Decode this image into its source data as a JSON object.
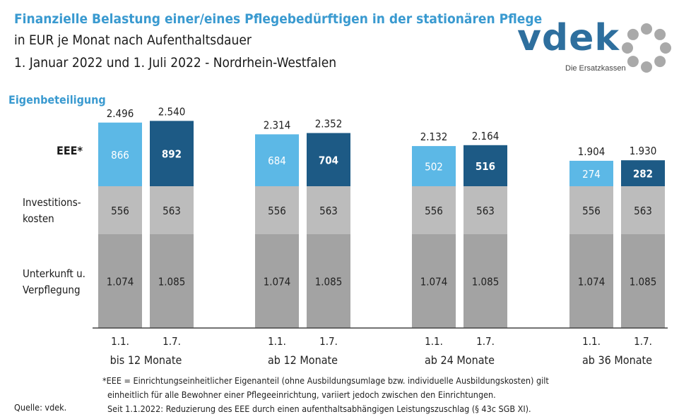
{
  "header": {
    "title": "Finanzielle Belastung einer/eines Pflegebedürftigen in der stationären Pflege",
    "subtitle": "in EUR je Monat nach Aufenthaltsdauer",
    "subtitle2": "1. Januar 2022 und 1. Juli 2022 - Nordrhein-Westfalen"
  },
  "logo": {
    "word": "vdek",
    "tagline": "Die Ersatzkassen"
  },
  "footnotes": {
    "line1": "*EEE = Einrichtungseinheitlicher  Eigenanteil (ohne Ausbildungsumlage bzw. individuelle Ausbildungskosten) gilt",
    "line2": "einheitlich für alle Bewohner einer Pflegeeinrichtung, variiert jedoch zwischen den Einrichtungen.",
    "line3": "Seit 1.1.2022:  Reduzierung des EEE durch einen aufenthaltsabhängigen Leistungszuschlag  (§ 43c SGB XI)."
  },
  "source": "Quelle: vdek.",
  "colors": {
    "title": "#3a9ad0",
    "eee_jan": "#5cb8e6",
    "eee_jul": "#1d5a85",
    "invest": "#bcbcbc",
    "unterkunft": "#a3a3a3",
    "logo": "#2e6f9e"
  },
  "chart_data": {
    "type": "bar",
    "stacked": true,
    "row_labels": {
      "eigenbeteiligung": "Eigenbeteiligung",
      "eee": "EEE*",
      "invest_line1": "Investitions-",
      "invest_line2": "kosten",
      "unterkunft_line1": "Unterkunft u.",
      "unterkunft_line2": "Verpflegung"
    },
    "groups": [
      {
        "label": "bis 12 Monate",
        "bars": [
          {
            "date": "1.1.",
            "unterkunft": 1074,
            "invest": 556,
            "eee": 866,
            "total": 2496,
            "unterkunft_label": "1.074",
            "invest_label": "556",
            "eee_label": "866",
            "total_label": "2.496"
          },
          {
            "date": "1.7.",
            "unterkunft": 1085,
            "invest": 563,
            "eee": 892,
            "total": 2540,
            "unterkunft_label": "1.085",
            "invest_label": "563",
            "eee_label": "892",
            "total_label": "2.540"
          }
        ]
      },
      {
        "label": "ab 12 Monate",
        "bars": [
          {
            "date": "1.1.",
            "unterkunft": 1074,
            "invest": 556,
            "eee": 684,
            "total": 2314,
            "unterkunft_label": "1.074",
            "invest_label": "556",
            "eee_label": "684",
            "total_label": "2.314"
          },
          {
            "date": "1.7.",
            "unterkunft": 1085,
            "invest": 563,
            "eee": 704,
            "total": 2352,
            "unterkunft_label": "1.085",
            "invest_label": "563",
            "eee_label": "704",
            "total_label": "2.352"
          }
        ]
      },
      {
        "label": "ab 24 Monate",
        "bars": [
          {
            "date": "1.1.",
            "unterkunft": 1074,
            "invest": 556,
            "eee": 502,
            "total": 2132,
            "unterkunft_label": "1.074",
            "invest_label": "556",
            "eee_label": "502",
            "total_label": "2.132"
          },
          {
            "date": "1.7.",
            "unterkunft": 1085,
            "invest": 563,
            "eee": 516,
            "total": 2164,
            "unterkunft_label": "1.085",
            "invest_label": "563",
            "eee_label": "516",
            "total_label": "2.164"
          }
        ]
      },
      {
        "label": "ab 36 Monate",
        "bars": [
          {
            "date": "1.1.",
            "unterkunft": 1074,
            "invest": 556,
            "eee": 274,
            "total": 1904,
            "unterkunft_label": "1.074",
            "invest_label": "556",
            "eee_label": "274",
            "total_label": "1.904"
          },
          {
            "date": "1.7.",
            "unterkunft": 1085,
            "invest": 563,
            "eee": 282,
            "total": 1930,
            "unterkunft_label": "1.085",
            "invest_label": "563",
            "eee_label": "282",
            "total_label": "1.930"
          }
        ]
      }
    ]
  }
}
